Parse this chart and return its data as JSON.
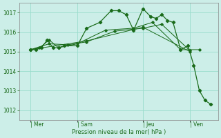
{
  "bg_color": "#cceee8",
  "grid_color": "#99ddcc",
  "line_color": "#1a6b1a",
  "xlabel": "Pression niveau de la mer( hPa )",
  "ylim": [
    1011.5,
    1017.5
  ],
  "yticks": [
    1012,
    1013,
    1014,
    1015,
    1016,
    1017
  ],
  "day_labels": [
    "| Mer",
    "| Sam",
    "| Jeu",
    "| Ven"
  ],
  "day_positions": [
    0.5,
    3.0,
    6.5,
    9.0
  ],
  "xlim": [
    -0.1,
    10.5
  ],
  "series": [
    {
      "x": [
        0.5,
        0.8,
        1.1,
        1.4,
        1.7,
        2.0,
        2.3,
        3.0,
        3.5,
        4.2,
        4.8,
        5.2,
        5.6,
        6.0,
        6.5,
        6.9,
        7.2,
        7.5,
        7.8,
        8.1,
        8.5,
        8.9,
        9.2,
        9.5,
        9.8,
        10.1
      ],
      "y": [
        1015.1,
        1015.1,
        1015.2,
        1015.6,
        1015.2,
        1015.2,
        1015.3,
        1015.3,
        1016.2,
        1016.5,
        1017.1,
        1017.1,
        1016.9,
        1016.1,
        1017.2,
        1016.8,
        1016.7,
        1016.9,
        1016.6,
        1016.5,
        1015.1,
        1015.3,
        1014.3,
        1013.0,
        1012.5,
        1012.3
      ]
    },
    {
      "x": [
        0.5,
        1.0,
        1.5,
        2.0,
        3.0,
        4.5,
        6.0,
        7.0,
        8.5,
        9.5
      ],
      "y": [
        1015.1,
        1015.2,
        1015.6,
        1015.2,
        1015.4,
        1016.1,
        1016.2,
        1016.5,
        1015.1,
        1015.1
      ]
    },
    {
      "x": [
        0.5,
        1.5,
        2.5,
        3.5,
        5.0,
        6.5,
        7.5,
        9.0
      ],
      "y": [
        1015.1,
        1015.4,
        1015.35,
        1015.5,
        1016.05,
        1016.2,
        1016.4,
        1015.05
      ]
    },
    {
      "x": [
        0.5,
        3.5,
        6.5,
        9.0
      ],
      "y": [
        1015.1,
        1015.55,
        1016.25,
        1015.0
      ]
    }
  ]
}
